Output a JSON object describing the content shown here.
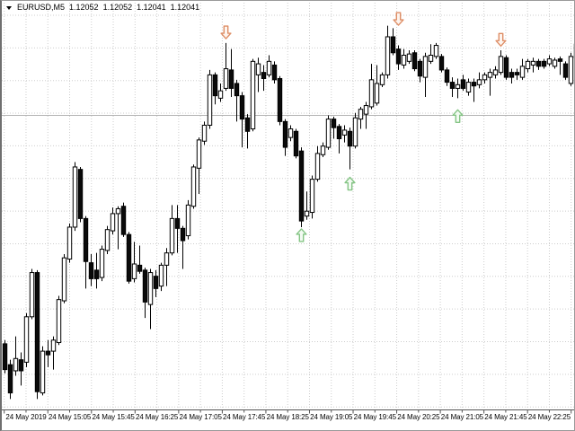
{
  "window": {
    "app": "MetaTrader chart",
    "background": "#ffffff",
    "border_color": "#9a9a9a"
  },
  "header": {
    "collapse_icon": "expand-triangle",
    "symbol": "EURUSD,M5",
    "open": "1.12052",
    "high": "1.12052",
    "low": "1.12041",
    "close": "1.12041"
  },
  "chart_data": {
    "type": "candlestick",
    "symbol": "EURUSD",
    "timeframe": "M5",
    "date": "24 May 2019",
    "ylim": [
      1.11756,
      1.12077
    ],
    "grid": {
      "enabled": true,
      "style": "dotted",
      "color": "#cdcdcd"
    },
    "price_line": {
      "price": 1.11994,
      "color": "#b3b3b3"
    },
    "x_labels": [
      "24 May 2019",
      "24 May 15:05",
      "24 May 15:45",
      "24 May 16:25",
      "24 May 17:05",
      "24 May 17:45",
      "24 May 18:25",
      "24 May 19:05",
      "24 May 19:45",
      "24 May 20:25",
      "24 May 21:05",
      "24 May 21:45",
      "24 May 22:25"
    ],
    "series_format": [
      "time",
      "open",
      "high",
      "low",
      "close"
    ],
    "candles": [
      [
        "14:00",
        1.11808,
        1.11811,
        1.11784,
        1.11787
      ],
      [
        "14:05",
        1.11791,
        1.11795,
        1.11763,
        1.11768
      ],
      [
        "14:10",
        1.11786,
        1.11814,
        1.11782,
        1.11796
      ],
      [
        "14:15",
        1.11795,
        1.11801,
        1.11774,
        1.11786
      ],
      [
        "14:20",
        1.11793,
        1.11833,
        1.11789,
        1.1183
      ],
      [
        "14:25",
        1.1183,
        1.11869,
        1.11828,
        1.11866
      ],
      [
        "14:30",
        1.11866,
        1.11868,
        1.11763,
        1.11769
      ],
      [
        "14:35",
        1.11768,
        1.11806,
        1.11766,
        1.11802
      ],
      [
        "14:40",
        1.11802,
        1.11811,
        1.11789,
        1.11799
      ],
      [
        "14:45",
        1.11802,
        1.11814,
        1.11787,
        1.11811
      ],
      [
        "14:50",
        1.11809,
        1.11847,
        1.11807,
        1.11844
      ],
      [
        "14:55",
        1.11843,
        1.11881,
        1.11841,
        1.11878
      ],
      [
        "15:00",
        1.11877,
        1.11906,
        1.11874,
        1.11903
      ],
      [
        "15:05",
        1.11903,
        1.11956,
        1.119,
        1.11952
      ],
      [
        "15:10",
        1.1195,
        1.11952,
        1.11907,
        1.1191
      ],
      [
        "15:15",
        1.1191,
        1.11912,
        1.11853,
        1.11875
      ],
      [
        "15:20",
        1.11874,
        1.11881,
        1.11855,
        1.11861
      ],
      [
        "15:25",
        1.11868,
        1.11882,
        1.11853,
        1.11861
      ],
      [
        "15:30",
        1.11862,
        1.11888,
        1.11859,
        1.11885
      ],
      [
        "15:35",
        1.11884,
        1.11904,
        1.11881,
        1.11901
      ],
      [
        "15:40",
        1.119,
        1.11919,
        1.11897,
        1.11914
      ],
      [
        "15:45",
        1.11914,
        1.1192,
        1.11885,
        1.11918
      ],
      [
        "15:50",
        1.1192,
        1.11923,
        1.11895,
        1.11897
      ],
      [
        "15:55",
        1.11897,
        1.11899,
        1.11857,
        1.11859
      ],
      [
        "16:00",
        1.11861,
        1.11891,
        1.11858,
        1.11873
      ],
      [
        "16:05",
        1.11872,
        1.11888,
        1.11865,
        1.11867
      ],
      [
        "16:10",
        1.11868,
        1.1187,
        1.11829,
        1.11842
      ],
      [
        "16:15",
        1.1184,
        1.11869,
        1.1182,
        1.11866
      ],
      [
        "16:20",
        1.11863,
        1.11868,
        1.11846,
        1.11853
      ],
      [
        "16:25",
        1.11855,
        1.11874,
        1.11851,
        1.11872
      ],
      [
        "16:30",
        1.11872,
        1.11886,
        1.11855,
        1.11882
      ],
      [
        "16:35",
        1.11882,
        1.11921,
        1.1188,
        1.1191
      ],
      [
        "16:40",
        1.1191,
        1.11921,
        1.11882,
        1.11902
      ],
      [
        "16:45",
        1.11902,
        1.11904,
        1.11869,
        1.11892
      ],
      [
        "16:50",
        1.11896,
        1.11925,
        1.11893,
        1.11921
      ],
      [
        "16:55",
        1.1192,
        1.11954,
        1.11918,
        1.11952
      ],
      [
        "17:00",
        1.11951,
        1.11976,
        1.1193,
        1.11974
      ],
      [
        "17:05",
        1.11973,
        1.11989,
        1.1197,
        1.11986
      ],
      [
        "17:10",
        1.11986,
        1.12031,
        1.11983,
        1.12027
      ],
      [
        "17:15",
        1.12027,
        1.12029,
        1.12003,
        1.1201
      ],
      [
        "17:20",
        1.12008,
        1.1202,
        1.12005,
        1.12014
      ],
      [
        "17:25",
        1.12016,
        1.12053,
        1.12014,
        1.12032
      ],
      [
        "17:30",
        1.12031,
        1.12048,
        1.12009,
        1.12016
      ],
      [
        "17:35",
        1.1202,
        1.12023,
        1.11989,
        1.1201
      ],
      [
        "17:40",
        1.1201,
        1.12013,
        1.11968,
        1.11991
      ],
      [
        "17:45",
        1.11992,
        1.11995,
        1.11967,
        1.11981
      ],
      [
        "17:50",
        1.11983,
        1.1204,
        1.11981,
        1.12038
      ],
      [
        "17:55",
        1.12027,
        1.12041,
        1.12013,
        1.12036
      ],
      [
        "18:00",
        1.12029,
        1.12035,
        1.12014,
        1.12024
      ],
      [
        "18:05",
        1.12027,
        1.12043,
        1.12025,
        1.12038
      ],
      [
        "18:10",
        1.12035,
        1.12038,
        1.1202,
        1.12023
      ],
      [
        "18:15",
        1.12024,
        1.12026,
        1.11986,
        1.11989
      ],
      [
        "18:20",
        1.11989,
        1.11991,
        1.11961,
        1.11968
      ],
      [
        "18:25",
        1.11976,
        1.11986,
        1.11973,
        1.11983
      ],
      [
        "18:30",
        1.11981,
        1.11983,
        1.11959,
        1.11961
      ],
      [
        "18:35",
        1.11965,
        1.11968,
        1.11903,
        1.11908
      ],
      [
        "18:40",
        1.11912,
        1.11932,
        1.11909,
        1.11916
      ],
      [
        "18:45",
        1.11915,
        1.11945,
        1.1191,
        1.11942
      ],
      [
        "18:50",
        1.11942,
        1.11969,
        1.1194,
        1.11963
      ],
      [
        "18:55",
        1.11962,
        1.11972,
        1.1196,
        1.11969
      ],
      [
        "19:00",
        1.11968,
        1.11994,
        1.11966,
        1.11991
      ],
      [
        "19:05",
        1.11991,
        1.11993,
        1.11975,
        1.11984
      ],
      [
        "19:10",
        1.11985,
        1.11987,
        1.11963,
        1.11975
      ],
      [
        "19:15",
        1.11978,
        1.11986,
        1.11972,
        1.11982
      ],
      [
        "19:20",
        1.11981,
        1.11984,
        1.1195,
        1.11969
      ],
      [
        "19:25",
        1.11969,
        1.11996,
        1.11967,
        1.11992
      ],
      [
        "19:30",
        1.11991,
        1.12001,
        1.11983,
        1.11999
      ],
      [
        "19:35",
        1.11995,
        1.12005,
        1.11983,
        1.12002
      ],
      [
        "19:40",
        1.12001,
        1.12036,
        1.11999,
        1.12023
      ],
      [
        "19:45",
        1.12004,
        1.12035,
        1.12002,
        1.1202
      ],
      [
        "19:50",
        1.12019,
        1.12029,
        1.12017,
        1.12027
      ],
      [
        "19:55",
        1.12027,
        1.12067,
        1.12024,
        1.12058
      ],
      [
        "20:00",
        1.12058,
        1.12065,
        1.12043,
        1.12045
      ],
      [
        "20:05",
        1.12048,
        1.12051,
        1.12031,
        1.12036
      ],
      [
        "20:10",
        1.12035,
        1.12048,
        1.12032,
        1.12043
      ],
      [
        "20:15",
        1.12038,
        1.12047,
        1.12036,
        1.12044
      ],
      [
        "20:20",
        1.12045,
        1.12047,
        1.1203,
        1.12032
      ],
      [
        "20:25",
        1.12038,
        1.1204,
        1.12021,
        1.12026
      ],
      [
        "20:30",
        1.12025,
        1.12045,
        1.12009,
        1.12042
      ],
      [
        "20:35",
        1.12038,
        1.12052,
        1.12036,
        1.12043
      ],
      [
        "20:40",
        1.12042,
        1.12053,
        1.1204,
        1.12051
      ],
      [
        "20:45",
        1.12042,
        1.12044,
        1.12029,
        1.12031
      ],
      [
        "20:50",
        1.12031,
        1.12033,
        1.12018,
        1.12021
      ],
      [
        "20:55",
        1.12021,
        1.12025,
        1.12009,
        1.12016
      ],
      [
        "21:00",
        1.12016,
        1.12024,
        1.12008,
        1.12019
      ],
      [
        "21:05",
        1.12023,
        1.12027,
        1.12014,
        1.12016
      ],
      [
        "21:10",
        1.12013,
        1.12024,
        1.1201,
        1.12021
      ],
      [
        "21:15",
        1.12021,
        1.12024,
        1.12005,
        1.12018
      ],
      [
        "21:20",
        1.12019,
        1.12029,
        1.12016,
        1.12023
      ],
      [
        "21:25",
        1.12023,
        1.12029,
        1.1202,
        1.12027
      ],
      [
        "21:30",
        1.12025,
        1.12032,
        1.1201,
        1.12029
      ],
      [
        "21:35",
        1.12027,
        1.12034,
        1.12024,
        1.12031
      ],
      [
        "21:40",
        1.12029,
        1.12047,
        1.12027,
        1.12042
      ],
      [
        "21:45",
        1.12041,
        1.12043,
        1.12023,
        1.12025
      ],
      [
        "21:50",
        1.12029,
        1.12032,
        1.1202,
        1.12025
      ],
      [
        "21:55",
        1.12029,
        1.12032,
        1.12023,
        1.12027
      ],
      [
        "22:00",
        1.12025,
        1.1204,
        1.12023,
        1.12034
      ],
      [
        "22:05",
        1.12032,
        1.1204,
        1.12029,
        1.12038
      ],
      [
        "22:10",
        1.12035,
        1.12041,
        1.12029,
        1.12038
      ],
      [
        "22:15",
        1.12038,
        1.1204,
        1.12031,
        1.12034
      ],
      [
        "22:20",
        1.12038,
        1.1204,
        1.12032,
        1.12034
      ],
      [
        "22:25",
        1.12036,
        1.12043,
        1.12034,
        1.1204
      ],
      [
        "22:30",
        1.12034,
        1.12041,
        1.12032,
        1.12039
      ],
      [
        "22:35",
        1.1204,
        1.12042,
        1.12027,
        1.12038
      ],
      [
        "22:40",
        1.12036,
        1.12038,
        1.12023,
        1.12025
      ],
      [
        "22:45",
        1.1202,
        1.12045,
        1.12018,
        1.12042
      ],
      [
        "22:50",
        1.12052,
        1.12052,
        1.12041,
        1.12041
      ]
    ],
    "signals": [
      {
        "type": "sell",
        "candle": 41,
        "price": 1.12055
      },
      {
        "type": "buy",
        "candle": 55,
        "price": 1.11903
      },
      {
        "type": "buy",
        "candle": 64,
        "price": 1.11945
      },
      {
        "type": "sell",
        "candle": 73,
        "price": 1.12066
      },
      {
        "type": "buy",
        "candle": 84,
        "price": 1.12
      },
      {
        "type": "sell",
        "candle": 92,
        "price": 1.12049
      }
    ],
    "colors": {
      "bull_fill": "#ffffff",
      "bear_fill": "#0a0a0a",
      "outline": "#000000",
      "buy_arrow": "#85c585",
      "sell_arrow": "#de8e66",
      "grid": "#cdcdcd",
      "axis_line": "#555555"
    }
  }
}
